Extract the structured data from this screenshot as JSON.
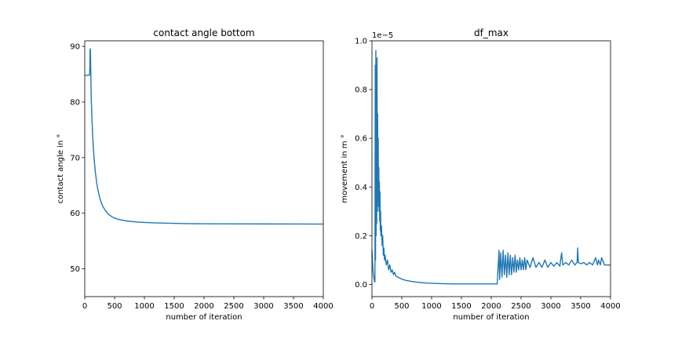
{
  "chart_data": [
    {
      "type": "line",
      "title": "contact angle bottom",
      "xlabel": "number of iteration",
      "ylabel": "contact angle in °",
      "xlim": [
        0,
        4000
      ],
      "ylim": [
        45,
        91
      ],
      "xticks": [
        0,
        500,
        1000,
        1500,
        2000,
        2500,
        3000,
        3500,
        4000
      ],
      "yticks": [
        50,
        60,
        70,
        80,
        90
      ],
      "grid": false,
      "color": "#1f77b4",
      "series": [
        {
          "x": [
            0,
            20,
            40,
            60,
            70,
            80,
            85,
            90,
            95,
            100,
            105,
            110,
            120,
            130,
            140,
            150,
            160,
            180,
            200,
            220,
            250,
            280,
            300,
            350,
            400,
            450,
            500,
            600,
            700,
            800,
            900,
            1000,
            1200,
            1400,
            1600,
            1800,
            2000,
            2500,
            3000,
            3500,
            4000
          ],
          "y": [
            84.8,
            84.8,
            84.8,
            84.8,
            84.8,
            84.8,
            86.0,
            89.5,
            89.5,
            86.0,
            83.0,
            80.3,
            77.2,
            74.6,
            72.5,
            70.8,
            69.4,
            67.2,
            65.5,
            64.2,
            62.8,
            61.8,
            61.3,
            60.4,
            59.8,
            59.4,
            59.1,
            58.8,
            58.6,
            58.5,
            58.4,
            58.35,
            58.25,
            58.2,
            58.15,
            58.12,
            58.1,
            58.08,
            58.07,
            58.06,
            58.05
          ]
        }
      ]
    },
    {
      "type": "line",
      "title": "df_max",
      "xlabel": "number of iteration",
      "ylabel": "movement in m °",
      "offset_text": "1e−5",
      "xlim": [
        0,
        4000
      ],
      "ylim": [
        -0.05,
        1.0
      ],
      "xticks": [
        0,
        500,
        1000,
        1500,
        2000,
        2500,
        3000,
        3500,
        4000
      ],
      "yticks": [
        0.0,
        0.2,
        0.4,
        0.6,
        0.8,
        1.0
      ],
      "ytick_labels": [
        "0.0",
        "0.2",
        "0.4",
        "0.6",
        "0.8",
        "1.0"
      ],
      "grid": false,
      "color": "#1f77b4",
      "series": [
        {
          "x": [
            0,
            10,
            20,
            30,
            40,
            50,
            55,
            60,
            65,
            70,
            75,
            80,
            85,
            90,
            95,
            100,
            105,
            110,
            115,
            120,
            125,
            130,
            135,
            140,
            145,
            150,
            160,
            170,
            180,
            190,
            200,
            210,
            220,
            240,
            260,
            280,
            300,
            320,
            340,
            360,
            380,
            400,
            450,
            500,
            550,
            600,
            700,
            800,
            900,
            1000,
            1200,
            1400,
            1600,
            1800,
            2000,
            2100,
            2130,
            2140,
            2160,
            2180,
            2200,
            2220,
            2240,
            2260,
            2280,
            2300,
            2320,
            2340,
            2360,
            2380,
            2400,
            2420,
            2440,
            2460,
            2480,
            2500,
            2520,
            2540,
            2560,
            2580,
            2600,
            2650,
            2700,
            2750,
            2800,
            2850,
            2900,
            2950,
            3000,
            3050,
            3100,
            3150,
            3180,
            3200,
            3250,
            3300,
            3350,
            3400,
            3440,
            3450,
            3460,
            3500,
            3550,
            3600,
            3650,
            3700,
            3750,
            3780,
            3800,
            3830,
            3850,
            3900,
            3950,
            4000
          ],
          "y": [
            0.14,
            0.09,
            0.05,
            0.03,
            0.015,
            0.01,
            0.9,
            0.1,
            0.96,
            0.2,
            0.88,
            0.25,
            0.93,
            0.3,
            0.7,
            0.35,
            0.6,
            0.32,
            0.48,
            0.3,
            0.42,
            0.26,
            0.38,
            0.22,
            0.3,
            0.2,
            0.24,
            0.16,
            0.2,
            0.12,
            0.15,
            0.1,
            0.12,
            0.08,
            0.1,
            0.06,
            0.08,
            0.05,
            0.06,
            0.04,
            0.05,
            0.035,
            0.028,
            0.022,
            0.018,
            0.015,
            0.011,
            0.008,
            0.006,
            0.005,
            0.003,
            0.002,
            0.002,
            0.002,
            0.002,
            0.002,
            0.14,
            0.02,
            0.13,
            0.03,
            0.14,
            0.04,
            0.12,
            0.03,
            0.13,
            0.04,
            0.12,
            0.04,
            0.11,
            0.05,
            0.12,
            0.05,
            0.1,
            0.06,
            0.11,
            0.06,
            0.1,
            0.06,
            0.11,
            0.06,
            0.1,
            0.07,
            0.11,
            0.07,
            0.09,
            0.07,
            0.1,
            0.07,
            0.09,
            0.075,
            0.09,
            0.075,
            0.13,
            0.08,
            0.09,
            0.08,
            0.1,
            0.08,
            0.09,
            0.15,
            0.09,
            0.085,
            0.09,
            0.08,
            0.09,
            0.08,
            0.11,
            0.08,
            0.1,
            0.08,
            0.11,
            0.08,
            0.08,
            0.08
          ]
        }
      ]
    }
  ]
}
